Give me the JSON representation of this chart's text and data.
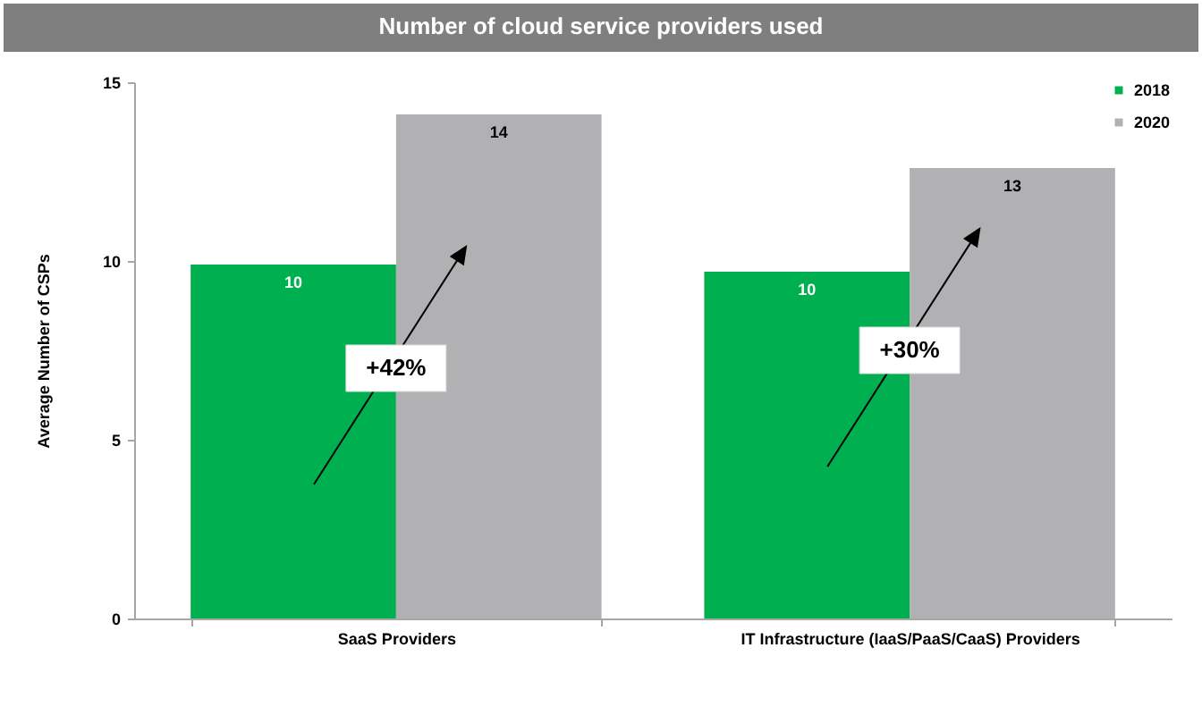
{
  "chart_data": {
    "type": "bar",
    "title": "Number of cloud service providers used",
    "ylabel": "Average Number of CSPs",
    "categories": [
      "SaaS Providers",
      "IT Infrastructure (IaaS/PaaS/CaaS) Providers"
    ],
    "series": [
      {
        "name": "2018",
        "color": "#00b050",
        "values": [
          9.9,
          9.7
        ],
        "value_labels": [
          "10",
          "10"
        ]
      },
      {
        "name": "2020",
        "color": "#b1b1b3",
        "values": [
          14.1,
          12.6
        ],
        "value_labels": [
          "14",
          "13"
        ]
      }
    ],
    "ylim": [
      0,
      15
    ],
    "yticks": [
      0,
      5,
      10,
      15
    ],
    "legend": "top right",
    "annotations": [
      {
        "text": "+42%",
        "x": "SaaS Providers",
        "y": 7
      },
      {
        "text": "+30%",
        "x": "IT Infrastructure (IaaS/PaaS/CaaS) Providers",
        "y": 7.5
      }
    ]
  }
}
